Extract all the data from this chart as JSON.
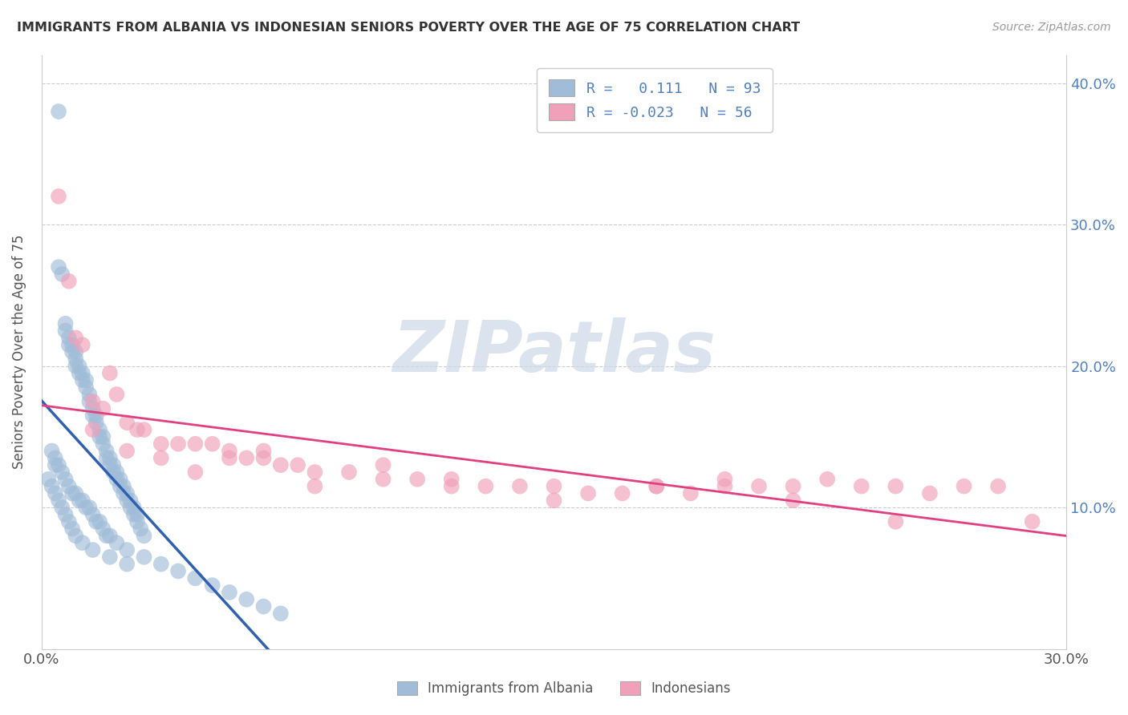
{
  "title": "IMMIGRANTS FROM ALBANIA VS INDONESIAN SENIORS POVERTY OVER THE AGE OF 75 CORRELATION CHART",
  "source": "Source: ZipAtlas.com",
  "ylabel": "Seniors Poverty Over the Age of 75",
  "xlim": [
    0.0,
    0.3
  ],
  "ylim": [
    0.0,
    0.42
  ],
  "color_albania": "#a0bcd8",
  "color_indonesia": "#f0a0b8",
  "line_color_albania": "#3060b0",
  "line_color_albania_dash": "#7090c0",
  "line_color_indonesia": "#e04080",
  "watermark_color": "#ccd8e8",
  "grid_color": "#cccccc",
  "tick_color": "#5080c0",
  "title_color": "#333333",
  "source_color": "#999999",
  "albania_x": [
    0.005,
    0.005,
    0.006,
    0.007,
    0.007,
    0.008,
    0.008,
    0.009,
    0.009,
    0.01,
    0.01,
    0.01,
    0.011,
    0.011,
    0.012,
    0.012,
    0.013,
    0.013,
    0.014,
    0.014,
    0.015,
    0.015,
    0.016,
    0.016,
    0.017,
    0.017,
    0.018,
    0.018,
    0.019,
    0.019,
    0.02,
    0.02,
    0.021,
    0.021,
    0.022,
    0.022,
    0.023,
    0.023,
    0.024,
    0.024,
    0.025,
    0.025,
    0.026,
    0.026,
    0.027,
    0.027,
    0.028,
    0.028,
    0.029,
    0.03,
    0.003,
    0.004,
    0.004,
    0.005,
    0.006,
    0.007,
    0.008,
    0.009,
    0.01,
    0.011,
    0.012,
    0.013,
    0.014,
    0.015,
    0.016,
    0.017,
    0.018,
    0.019,
    0.02,
    0.022,
    0.025,
    0.03,
    0.035,
    0.04,
    0.045,
    0.05,
    0.055,
    0.06,
    0.065,
    0.07,
    0.002,
    0.003,
    0.004,
    0.005,
    0.006,
    0.007,
    0.008,
    0.009,
    0.01,
    0.012,
    0.015,
    0.02,
    0.025
  ],
  "albania_y": [
    0.38,
    0.27,
    0.265,
    0.23,
    0.225,
    0.22,
    0.215,
    0.215,
    0.21,
    0.205,
    0.21,
    0.2,
    0.2,
    0.195,
    0.195,
    0.19,
    0.19,
    0.185,
    0.18,
    0.175,
    0.17,
    0.165,
    0.165,
    0.16,
    0.155,
    0.15,
    0.15,
    0.145,
    0.14,
    0.135,
    0.135,
    0.13,
    0.13,
    0.125,
    0.125,
    0.12,
    0.12,
    0.115,
    0.115,
    0.11,
    0.11,
    0.105,
    0.105,
    0.1,
    0.1,
    0.095,
    0.095,
    0.09,
    0.085,
    0.08,
    0.14,
    0.135,
    0.13,
    0.13,
    0.125,
    0.12,
    0.115,
    0.11,
    0.11,
    0.105,
    0.105,
    0.1,
    0.1,
    0.095,
    0.09,
    0.09,
    0.085,
    0.08,
    0.08,
    0.075,
    0.07,
    0.065,
    0.06,
    0.055,
    0.05,
    0.045,
    0.04,
    0.035,
    0.03,
    0.025,
    0.12,
    0.115,
    0.11,
    0.105,
    0.1,
    0.095,
    0.09,
    0.085,
    0.08,
    0.075,
    0.07,
    0.065,
    0.06
  ],
  "indonesia_x": [
    0.005,
    0.008,
    0.01,
    0.012,
    0.015,
    0.018,
    0.02,
    0.022,
    0.025,
    0.028,
    0.03,
    0.035,
    0.04,
    0.045,
    0.05,
    0.055,
    0.06,
    0.065,
    0.07,
    0.075,
    0.08,
    0.09,
    0.1,
    0.11,
    0.12,
    0.13,
    0.14,
    0.15,
    0.16,
    0.17,
    0.18,
    0.19,
    0.2,
    0.21,
    0.22,
    0.23,
    0.24,
    0.25,
    0.26,
    0.27,
    0.28,
    0.29,
    0.015,
    0.025,
    0.035,
    0.045,
    0.055,
    0.065,
    0.1,
    0.15,
    0.2,
    0.25,
    0.08,
    0.12,
    0.18,
    0.22
  ],
  "indonesia_y": [
    0.32,
    0.26,
    0.22,
    0.215,
    0.175,
    0.17,
    0.195,
    0.18,
    0.16,
    0.155,
    0.155,
    0.145,
    0.145,
    0.145,
    0.145,
    0.14,
    0.135,
    0.135,
    0.13,
    0.13,
    0.125,
    0.125,
    0.12,
    0.12,
    0.12,
    0.115,
    0.115,
    0.115,
    0.11,
    0.11,
    0.115,
    0.11,
    0.12,
    0.115,
    0.115,
    0.12,
    0.115,
    0.115,
    0.11,
    0.115,
    0.115,
    0.09,
    0.155,
    0.14,
    0.135,
    0.125,
    0.135,
    0.14,
    0.13,
    0.105,
    0.115,
    0.09,
    0.115,
    0.115,
    0.115,
    0.105
  ],
  "alb_line_x_solid_end": 0.05,
  "alb_line_start_y": 0.13,
  "alb_line_slope": 0.8,
  "ind_line_y": 0.128
}
